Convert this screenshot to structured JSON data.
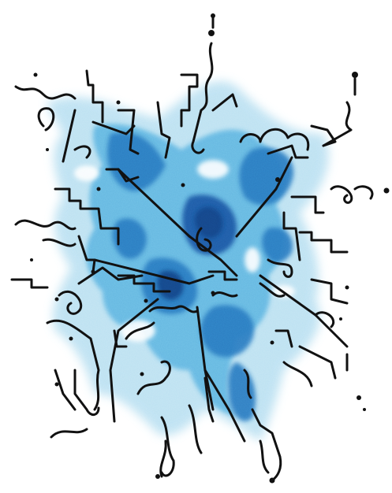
{
  "artwork": {
    "subject": "abstract-ink-and-watercolor",
    "colors": {
      "background": "#ffffff",
      "wash_light": "#bfe3f3",
      "wash_mid": "#6cc0e6",
      "wash_deep": "#2f86c9",
      "wash_core": "#1f5fae",
      "ink": "#111111"
    }
  }
}
